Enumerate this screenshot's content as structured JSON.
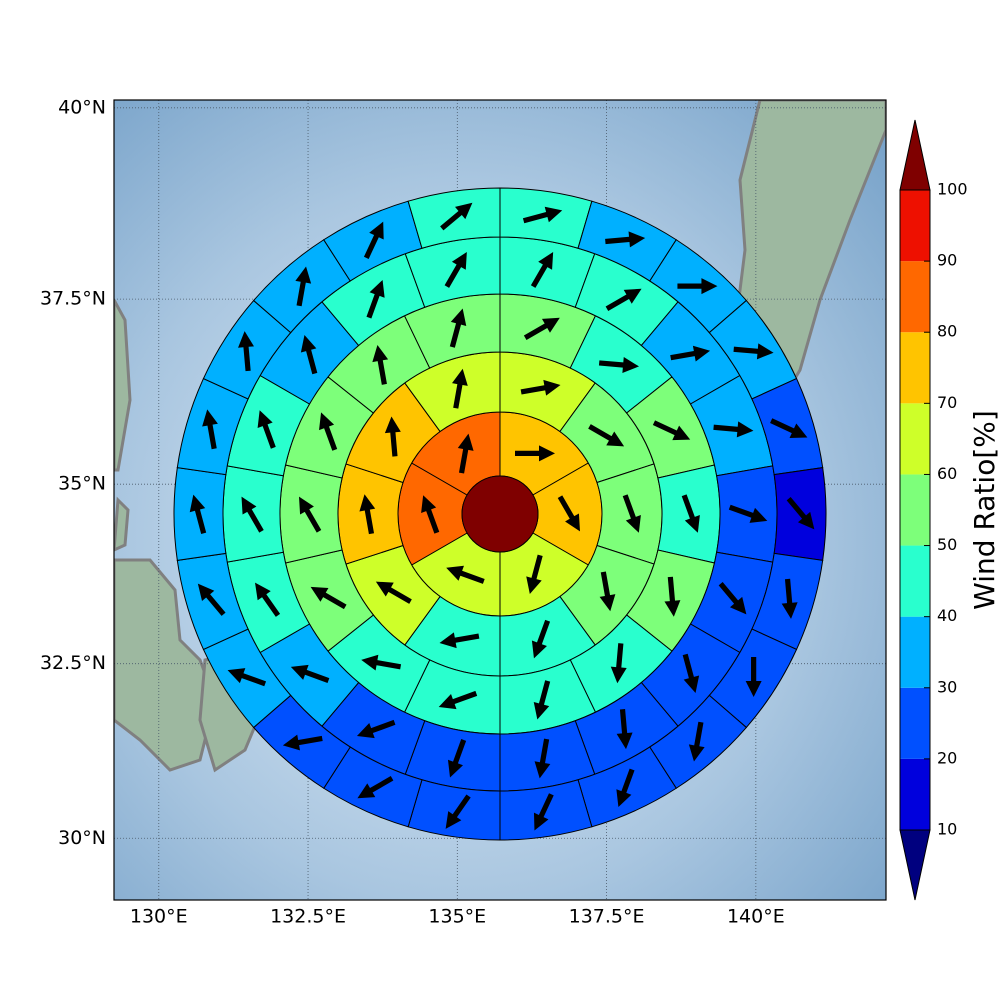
{
  "chart_data": {
    "type": "polar-wind-map",
    "lonlim": [
      129.25,
      142.18
    ],
    "latlim": [
      29.1,
      40.1
    ],
    "grid": true,
    "xticks": [
      {
        "value": 130,
        "label": "130°E"
      },
      {
        "value": 132.5,
        "label": "132.5°E"
      },
      {
        "value": 135,
        "label": "135°E"
      },
      {
        "value": 137.5,
        "label": "137.5°E"
      },
      {
        "value": 140,
        "label": "140°E"
      }
    ],
    "yticks": [
      {
        "value": 30,
        "label": "30°N"
      },
      {
        "value": 32.5,
        "label": "32.5°N"
      },
      {
        "value": 35,
        "label": "35°N"
      },
      {
        "value": 37.5,
        "label": "37.5°N"
      },
      {
        "value": 40,
        "label": "40°N"
      }
    ],
    "center_value": 100,
    "rings": [
      {
        "values": [
          75,
          75,
          65,
          65,
          85,
          85
        ],
        "directions": [
          90,
          150,
          195,
          290,
          340,
          10
        ]
      },
      {
        "values": [
          65,
          55,
          55,
          55,
          45,
          45,
          65,
          75,
          75,
          65
        ],
        "directions": [
          80,
          120,
          160,
          170,
          200,
          260,
          300,
          350,
          355,
          10
        ]
      },
      {
        "values": [
          55,
          45,
          55,
          45,
          55,
          45,
          45,
          45,
          45,
          55,
          55,
          55,
          55,
          55
        ],
        "directions": [
          60,
          95,
          115,
          160,
          175,
          185,
          195,
          250,
          280,
          300,
          330,
          340,
          350,
          15
        ]
      },
      {
        "values": [
          45,
          45,
          35,
          35,
          25,
          25,
          25,
          25,
          25,
          25,
          25,
          35,
          45,
          45,
          45,
          35,
          45,
          45
        ],
        "directions": [
          30,
          60,
          80,
          95,
          110,
          140,
          165,
          175,
          190,
          200,
          250,
          290,
          325,
          330,
          340,
          345,
          20,
          30
        ]
      },
      {
        "values": [
          45,
          35,
          35,
          35,
          25,
          15,
          25,
          25,
          25,
          25,
          25,
          25,
          25,
          25,
          35,
          35,
          35,
          35,
          35,
          35,
          35,
          45
        ],
        "directions": [
          75,
          85,
          90,
          95,
          115,
          140,
          175,
          180,
          190,
          200,
          205,
          215,
          240,
          260,
          290,
          320,
          345,
          350,
          355,
          10,
          25,
          50
        ]
      }
    ],
    "colorbar": {
      "label": "Wind Ratio[%]",
      "levels": [
        10,
        20,
        30,
        40,
        50,
        60,
        70,
        80,
        90,
        100
      ],
      "colors": [
        "#0000dd",
        "#0050ff",
        "#00b0ff",
        "#29ffce",
        "#7dff7a",
        "#ceff29",
        "#ffc400",
        "#ff6800",
        "#ee1000"
      ],
      "under_color": "#00007f",
      "over_color": "#7f0000"
    }
  }
}
